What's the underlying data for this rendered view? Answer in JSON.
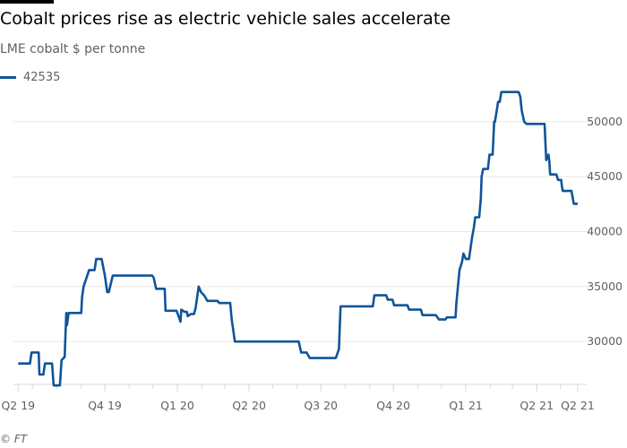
{
  "title": "Cobalt prices rise as electric vehicle sales accelerate",
  "subtitle": "LME cobalt $ per tonne",
  "credit": "© FT",
  "colors": {
    "line": "#0f5499",
    "grid": "#ece8e3",
    "text": "#66605c"
  },
  "chart_data": {
    "type": "line",
    "title": "Cobalt prices rise as electric vehicle sales accelerate",
    "ylabel": "LME cobalt $ per tonne",
    "xlim": [
      "2019-06-07",
      "2021-05-23"
    ],
    "ylim": [
      26100,
      53000
    ],
    "grid": true,
    "legend": "top-left",
    "y_axis_side": "right",
    "yticks": [
      30000,
      35000,
      40000,
      45000,
      50000
    ],
    "xticks": [
      {
        "date": "2019-06-13",
        "label": "Q2 19"
      },
      {
        "date": "2019-10-01",
        "label": "Q4 19"
      },
      {
        "date": "2020-01-01",
        "label": "Q1 20"
      },
      {
        "date": "2020-04-01",
        "label": "Q2 20"
      },
      {
        "date": "2020-07-01",
        "label": "Q3 20"
      },
      {
        "date": "2020-10-01",
        "label": "Q4 20"
      },
      {
        "date": "2021-01-01",
        "label": "Q1 21"
      },
      {
        "date": "2021-04-01",
        "label": "Q2 21"
      },
      {
        "date": "2021-05-23",
        "label": "Q2 21"
      }
    ],
    "series": [
      {
        "name": "42535",
        "points": [
          [
            "2019-06-13",
            28000
          ],
          [
            "2019-06-28",
            28000
          ],
          [
            "2019-06-30",
            29000
          ],
          [
            "2019-07-09",
            29000
          ],
          [
            "2019-07-10",
            27000
          ],
          [
            "2019-07-15",
            27000
          ],
          [
            "2019-07-17",
            28000
          ],
          [
            "2019-07-26",
            28000
          ],
          [
            "2019-07-28",
            26000
          ],
          [
            "2019-08-05",
            26000
          ],
          [
            "2019-08-07",
            28300
          ],
          [
            "2019-08-11",
            28600
          ],
          [
            "2019-08-13",
            32600
          ],
          [
            "2019-08-14",
            31500
          ],
          [
            "2019-08-16",
            32600
          ],
          [
            "2019-09-01",
            32600
          ],
          [
            "2019-09-02",
            34000
          ],
          [
            "2019-09-04",
            35000
          ],
          [
            "2019-09-11",
            36500
          ],
          [
            "2019-09-18",
            36500
          ],
          [
            "2019-09-20",
            37500
          ],
          [
            "2019-09-27",
            37500
          ],
          [
            "2019-10-01",
            36000
          ],
          [
            "2019-10-04",
            34500
          ],
          [
            "2019-10-06",
            34500
          ],
          [
            "2019-10-11",
            36000
          ],
          [
            "2019-11-30",
            36000
          ],
          [
            "2019-12-02",
            35800
          ],
          [
            "2019-12-05",
            34800
          ],
          [
            "2019-12-16",
            34800
          ],
          [
            "2019-12-17",
            32800
          ],
          [
            "2019-12-31",
            32800
          ],
          [
            "2020-01-03",
            32200
          ],
          [
            "2020-01-05",
            31800
          ],
          [
            "2020-01-06",
            32900
          ],
          [
            "2020-01-10",
            32700
          ],
          [
            "2020-01-13",
            32700
          ],
          [
            "2020-01-14",
            32300
          ],
          [
            "2020-01-18",
            32500
          ],
          [
            "2020-01-22",
            32500
          ],
          [
            "2020-01-24",
            33000
          ],
          [
            "2020-01-28",
            35000
          ],
          [
            "2020-01-31",
            34500
          ],
          [
            "2020-02-04",
            34200
          ],
          [
            "2020-02-08",
            33700
          ],
          [
            "2020-02-21",
            33700
          ],
          [
            "2020-02-23",
            33500
          ],
          [
            "2020-03-08",
            33500
          ],
          [
            "2020-03-10",
            32000
          ],
          [
            "2020-03-14",
            30000
          ],
          [
            "2020-06-03",
            30000
          ],
          [
            "2020-06-06",
            29000
          ],
          [
            "2020-06-13",
            29000
          ],
          [
            "2020-06-17",
            28500
          ],
          [
            "2020-07-20",
            28500
          ],
          [
            "2020-07-24",
            29300
          ],
          [
            "2020-07-26",
            33200
          ],
          [
            "2020-09-05",
            33200
          ],
          [
            "2020-09-07",
            34200
          ],
          [
            "2020-09-22",
            34200
          ],
          [
            "2020-09-24",
            33800
          ],
          [
            "2020-09-30",
            33800
          ],
          [
            "2020-10-02",
            33300
          ],
          [
            "2020-10-19",
            33300
          ],
          [
            "2020-10-21",
            32900
          ],
          [
            "2020-11-05",
            32900
          ],
          [
            "2020-11-07",
            32400
          ],
          [
            "2020-11-24",
            32400
          ],
          [
            "2020-11-28",
            32000
          ],
          [
            "2020-12-06",
            32000
          ],
          [
            "2020-12-08",
            32200
          ],
          [
            "2020-12-19",
            32200
          ],
          [
            "2020-12-20",
            33500
          ],
          [
            "2020-12-24",
            36500
          ],
          [
            "2020-12-27",
            37200
          ],
          [
            "2020-12-29",
            38000
          ],
          [
            "2021-01-01",
            37500
          ],
          [
            "2021-01-05",
            37500
          ],
          [
            "2021-01-09",
            39500
          ],
          [
            "2021-01-11",
            40300
          ],
          [
            "2021-01-13",
            41300
          ],
          [
            "2021-01-18",
            41300
          ],
          [
            "2021-01-20",
            43000
          ],
          [
            "2021-01-21",
            45000
          ],
          [
            "2021-01-23",
            45700
          ],
          [
            "2021-01-29",
            45700
          ],
          [
            "2021-01-31",
            47000
          ],
          [
            "2021-02-04",
            47000
          ],
          [
            "2021-02-06",
            50000
          ],
          [
            "2021-02-07",
            50000
          ],
          [
            "2021-02-11",
            51800
          ],
          [
            "2021-02-13",
            51800
          ],
          [
            "2021-02-15",
            52700
          ],
          [
            "2021-03-09",
            52700
          ],
          [
            "2021-03-11",
            52300
          ],
          [
            "2021-03-13",
            51000
          ],
          [
            "2021-03-16",
            50000
          ],
          [
            "2021-03-19",
            49800
          ],
          [
            "2021-04-11",
            49800
          ],
          [
            "2021-04-13",
            46500
          ],
          [
            "2021-04-16",
            47000
          ],
          [
            "2021-04-17",
            46400
          ],
          [
            "2021-04-18",
            45200
          ],
          [
            "2021-04-26",
            45200
          ],
          [
            "2021-04-28",
            44700
          ],
          [
            "2021-05-02",
            44700
          ],
          [
            "2021-05-03",
            44100
          ],
          [
            "2021-05-04",
            43700
          ],
          [
            "2021-05-15",
            43700
          ],
          [
            "2021-05-18",
            42535
          ],
          [
            "2021-05-23",
            42535
          ]
        ]
      }
    ]
  }
}
